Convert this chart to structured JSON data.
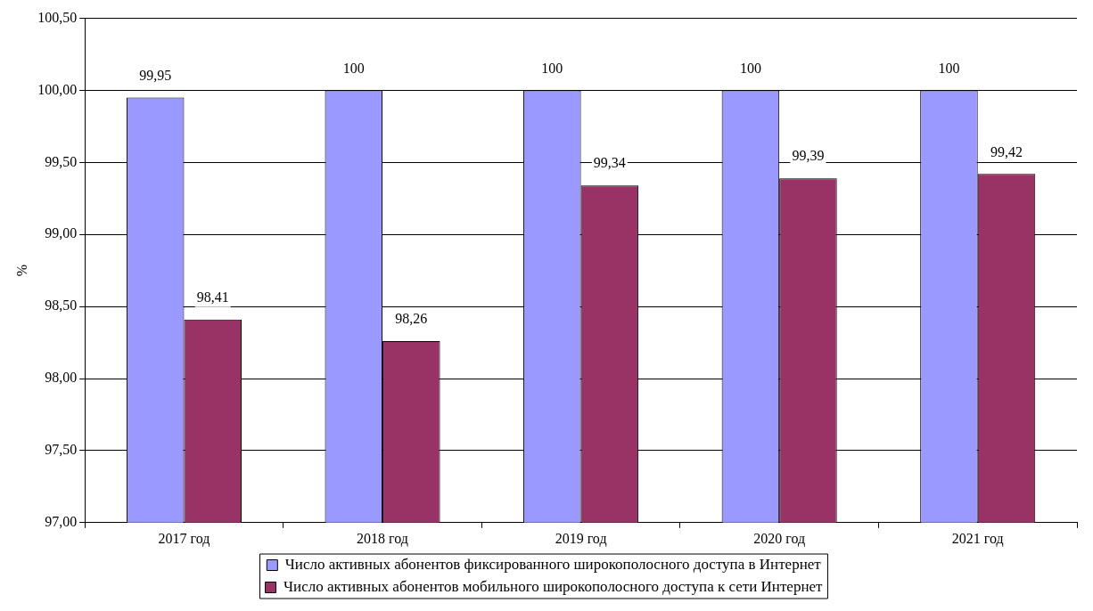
{
  "chart_data": {
    "type": "bar",
    "ylabel": "%",
    "categories": [
      "2017 год",
      "2018 год",
      "2019 год",
      "2020 год",
      "2021 год"
    ],
    "series": [
      {
        "name": "Число активных абонентов фиксированного широкополосного доступа в Интернет",
        "color": "#9999ff",
        "values": [
          99.95,
          100,
          100,
          100,
          100
        ],
        "value_labels": [
          "99,95",
          "100",
          "100",
          "100",
          "100"
        ]
      },
      {
        "name": "Число активных абонентов мобильного широкополосного доступа к сети Интернет",
        "color": "#993366",
        "values": [
          98.41,
          98.26,
          99.34,
          99.39,
          99.42
        ],
        "value_labels": [
          "98,41",
          "98,26",
          "99,34",
          "99,39",
          "99,42"
        ]
      }
    ],
    "ylim": [
      97,
      100.5
    ],
    "yticks": [
      {
        "value": 97,
        "label": "97,00"
      },
      {
        "value": 97.5,
        "label": "97,50"
      },
      {
        "value": 98,
        "label": "98,00"
      },
      {
        "value": 98.5,
        "label": "98,50"
      },
      {
        "value": 99,
        "label": "99,00"
      },
      {
        "value": 99.5,
        "label": "99,50"
      },
      {
        "value": 100,
        "label": "100,00"
      },
      {
        "value": 100.5,
        "label": "100,50"
      }
    ],
    "grid": "y",
    "legend": "bottom"
  }
}
